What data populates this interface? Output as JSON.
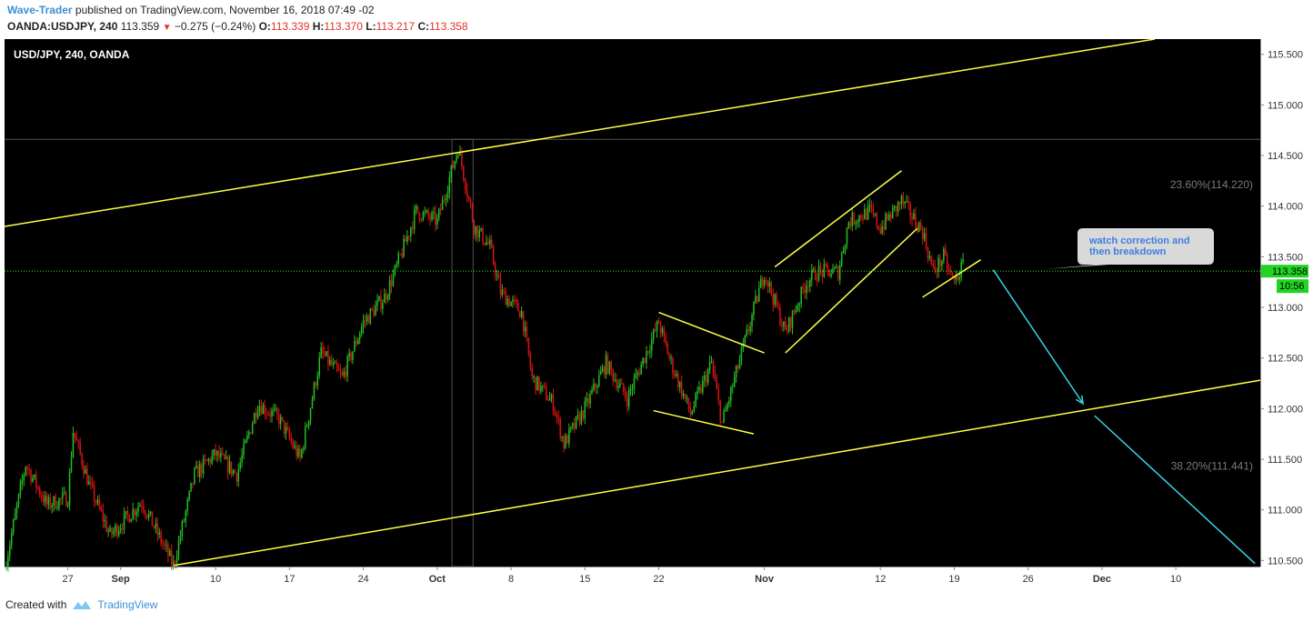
{
  "header": {
    "author": "Wave-Trader",
    "published": " published on TradingView.com, November 16, 2018 07:49 -02",
    "symbol": "OANDA:USDJPY, 240",
    "price": "113.359",
    "change": "−0.275 (−0.24%)",
    "o_label": "O:",
    "o": "113.339",
    "h_label": "H:",
    "h": "113.370",
    "l_label": "L:",
    "l": "113.217",
    "c_label": "C:",
    "c": "113.358"
  },
  "chart_data": {
    "type": "candlestick",
    "title": "USD/JPY, 240, OANDA",
    "ylim": [
      110.44,
      115.65
    ],
    "y_ticks": [
      "115.500",
      "115.000",
      "114.500",
      "114.000",
      "113.500",
      "113.000",
      "112.500",
      "112.000",
      "111.500",
      "111.000",
      "110.500"
    ],
    "y_tick_values": [
      115.5,
      115.0,
      114.5,
      114.0,
      113.5,
      113.0,
      112.5,
      112.0,
      111.5,
      111.0,
      110.5
    ],
    "x_ticks": [
      "27",
      "Sep",
      "10",
      "17",
      "24",
      "Oct",
      "8",
      "15",
      "22",
      "Nov",
      "12",
      "19",
      "26",
      "Dec",
      "10"
    ],
    "x_tick_days": [
      -4,
      1,
      10,
      17,
      24,
      31,
      38,
      45,
      52,
      62,
      73,
      80,
      87,
      94,
      101
    ],
    "x_range_days": [
      -10,
      109
    ],
    "x_origin_date": "2018-09-01",
    "current_price": "113.358",
    "countdown": "10:56",
    "fib_levels": [
      {
        "label": "23.60%(114.220)",
        "value": 114.22
      },
      {
        "label": "38.20%(111.441)",
        "value": 111.441
      }
    ],
    "annotation": "watch correction and then breakdown",
    "price_path": [
      [
        -10,
        110.42
      ],
      [
        -8,
        111.45
      ],
      [
        -6,
        111.05
      ],
      [
        -4,
        111.12
      ],
      [
        -3.5,
        111.78
      ],
      [
        -2,
        111.25
      ],
      [
        0,
        110.75
      ],
      [
        3,
        111.08
      ],
      [
        6,
        110.45
      ],
      [
        8,
        111.35
      ],
      [
        10,
        111.55
      ],
      [
        12,
        111.35
      ],
      [
        14,
        112.05
      ],
      [
        16,
        111.9
      ],
      [
        18,
        111.5
      ],
      [
        20,
        112.55
      ],
      [
        22,
        112.3
      ],
      [
        24,
        112.85
      ],
      [
        26,
        113.1
      ],
      [
        27,
        113.35
      ],
      [
        29,
        113.95
      ],
      [
        31,
        113.85
      ],
      [
        33,
        114.58
      ],
      [
        34.5,
        113.8
      ],
      [
        36,
        113.6
      ],
      [
        37,
        113.15
      ],
      [
        39,
        112.95
      ],
      [
        40,
        112.3
      ],
      [
        42,
        112.05
      ],
      [
        43,
        111.65
      ],
      [
        45,
        112.0
      ],
      [
        47,
        112.45
      ],
      [
        49,
        112.1
      ],
      [
        52,
        112.85
      ],
      [
        53,
        112.5
      ],
      [
        55,
        111.95
      ],
      [
        57,
        112.45
      ],
      [
        58,
        111.85
      ],
      [
        60,
        112.6
      ],
      [
        62,
        113.35
      ],
      [
        64,
        112.75
      ],
      [
        66,
        113.25
      ],
      [
        67,
        113.35
      ],
      [
        69,
        113.35
      ],
      [
        70,
        113.85
      ],
      [
        72,
        113.95
      ],
      [
        73,
        113.78
      ],
      [
        75,
        114.05
      ],
      [
        77,
        113.75
      ],
      [
        78,
        113.35
      ],
      [
        79,
        113.5
      ],
      [
        79.5,
        113.35
      ],
      [
        80,
        113.25
      ],
      [
        81,
        113.45
      ]
    ],
    "lines": [
      {
        "name": "upper-channel",
        "kind": "trend",
        "from": [
          -10,
          113.8
        ],
        "to": [
          99,
          115.65
        ]
      },
      {
        "name": "lower-channel",
        "kind": "trend",
        "from": [
          6,
          110.45
        ],
        "to": [
          109,
          112.28
        ]
      },
      {
        "name": "wedge-upper",
        "kind": "trend",
        "from": [
          52,
          112.95
        ],
        "to": [
          62,
          112.55
        ]
      },
      {
        "name": "wedge-lower",
        "kind": "trend",
        "from": [
          51.5,
          111.98
        ],
        "to": [
          61,
          111.75
        ]
      },
      {
        "name": "rising-channel-upper",
        "kind": "trend",
        "from": [
          63,
          113.4
        ],
        "to": [
          75,
          114.35
        ]
      },
      {
        "name": "rising-channel-lower",
        "kind": "trend",
        "from": [
          64,
          112.55
        ],
        "to": [
          76.5,
          113.78
        ]
      },
      {
        "name": "flag-lower",
        "kind": "trend",
        "from": [
          77,
          113.1
        ],
        "to": [
          82.5,
          113.47
        ]
      },
      {
        "name": "projection-arrow-1",
        "kind": "projection",
        "from": [
          83.7,
          113.37
        ],
        "to": [
          92.2,
          112.05
        ]
      },
      {
        "name": "projection-arrow-2",
        "kind": "projection",
        "from": [
          93.3,
          111.93
        ],
        "to": [
          108.5,
          110.47
        ]
      }
    ],
    "colors": {
      "up": "#22c022",
      "down": "#d91414",
      "trend": "#ffff44",
      "projection": "#38d4e8",
      "price_line": "#22ff22",
      "bg": "#000000"
    }
  },
  "footer": {
    "created_with": "Created with",
    "brand": "TradingView"
  }
}
